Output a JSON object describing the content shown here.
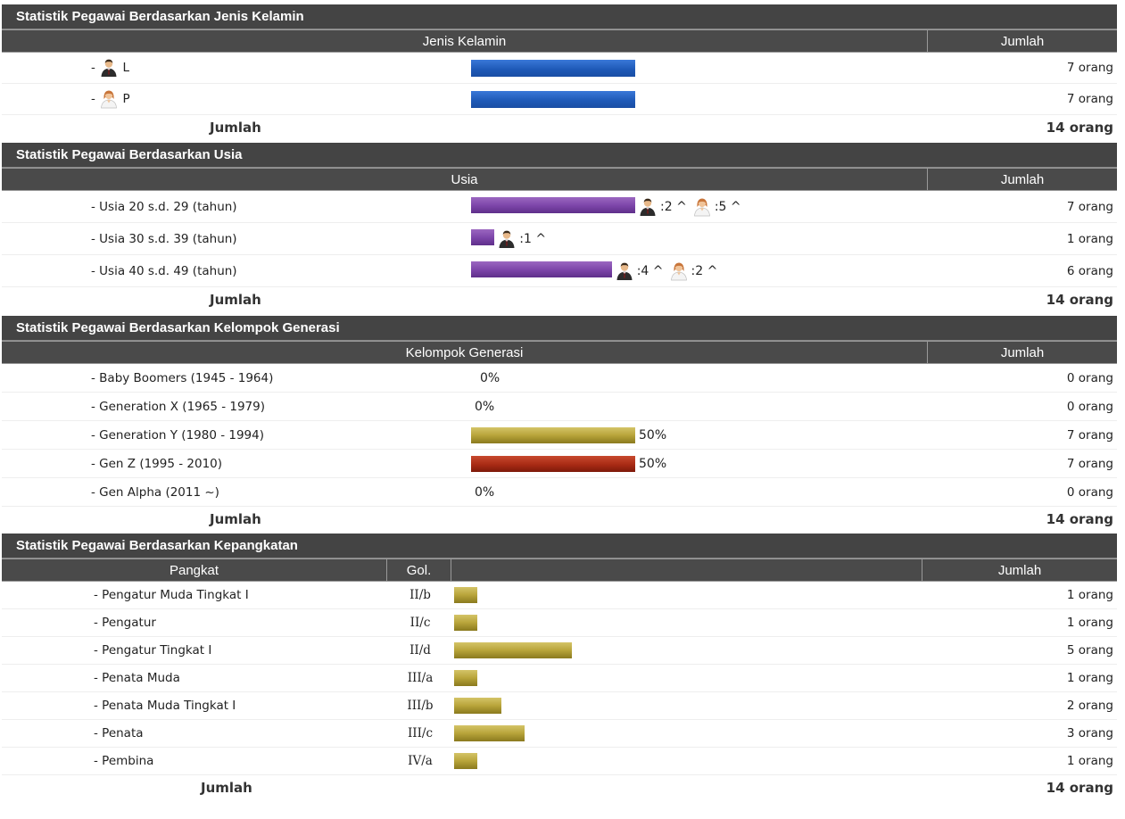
{
  "gender": {
    "title": "Statistik Pegawai Berdasarkan Jenis Kelamin",
    "col_category": "Jenis Kelamin",
    "col_total": "Jumlah",
    "rows": [
      {
        "dash": "-",
        "label": "L",
        "icon": "male-user-icon",
        "value": "7 orang",
        "count": 7
      },
      {
        "dash": "-",
        "label": "P",
        "icon": "female-user-icon",
        "value": "7 orang",
        "count": 7
      }
    ],
    "sum_label": "Jumlah",
    "sum_value": "14 orang",
    "bar_color": "#1f5ab8"
  },
  "age": {
    "title": "Statistik Pegawai Berdasarkan Usia",
    "col_category": "Usia",
    "col_total": "Jumlah",
    "rows": [
      {
        "label": "- Usia 20 s.d. 29 (tahun)",
        "count": 7,
        "male": ":2 ^",
        "female": ":5 ^",
        "value": "7 orang"
      },
      {
        "label": "- Usia 30 s.d. 39 (tahun)",
        "count": 1,
        "male": ":1 ^",
        "female": "",
        "value": "1 orang"
      },
      {
        "label": "- Usia 40 s.d. 49 (tahun)",
        "count": 6,
        "male": ":4 ^",
        "female": ":2 ^",
        "value": "6 orang"
      }
    ],
    "sum_label": "Jumlah",
    "sum_value": "14 orang",
    "bar_color": "#7b44a8"
  },
  "generation": {
    "title": "Statistik Pegawai Berdasarkan Kelompok Generasi",
    "col_category": "Kelompok Generasi",
    "col_total": "Jumlah",
    "rows": [
      {
        "label": "- Baby Boomers (1945 - 1964)",
        "percent": "0%",
        "fraction": 0,
        "value": "0 orang",
        "color": "#b8a43a"
      },
      {
        "label": "- Generation X (1965 - 1979)",
        "percent": "0%",
        "fraction": 0,
        "value": "0 orang",
        "color": "#b8a43a"
      },
      {
        "label": "- Generation Y (1980 - 1994)",
        "percent": "50%",
        "fraction": 0.5,
        "value": "7 orang",
        "color": "#b8a43a"
      },
      {
        "label": "- Gen Z (1995 - 2010)",
        "percent": "50%",
        "fraction": 0.5,
        "value": "7 orang",
        "color": "#a82a14"
      },
      {
        "label": "- Gen Alpha (2011 ~)",
        "percent": "0%",
        "fraction": 0,
        "value": "0 orang",
        "color": "#b8a43a"
      }
    ],
    "sum_label": "Jumlah",
    "sum_value": "14 orang"
  },
  "rank": {
    "title": "Statistik Pegawai Berdasarkan Kepangkatan",
    "col_rank": "Pangkat",
    "col_gol": "Gol.",
    "col_bar": "",
    "col_total": "Jumlah",
    "rows": [
      {
        "label": "- Pengatur Muda Tingkat I",
        "gol": "II/b",
        "count": 1,
        "value": "1 orang"
      },
      {
        "label": "- Pengatur",
        "gol": "II/c",
        "count": 1,
        "value": "1 orang"
      },
      {
        "label": "- Pengatur Tingkat I",
        "gol": "II/d",
        "count": 5,
        "value": "5 orang"
      },
      {
        "label": "- Penata Muda",
        "gol": "III/a",
        "count": 1,
        "value": "1 orang"
      },
      {
        "label": "- Penata Muda Tingkat I",
        "gol": "III/b",
        "count": 2,
        "value": "2 orang"
      },
      {
        "label": "- Penata",
        "gol": "III/c",
        "count": 3,
        "value": "3 orang"
      },
      {
        "label": "- Pembina",
        "gol": "IV/a",
        "count": 1,
        "value": "1 orang"
      }
    ],
    "sum_label": "Jumlah",
    "sum_value": "14 orang",
    "bar_color": "#b8a43a"
  }
}
